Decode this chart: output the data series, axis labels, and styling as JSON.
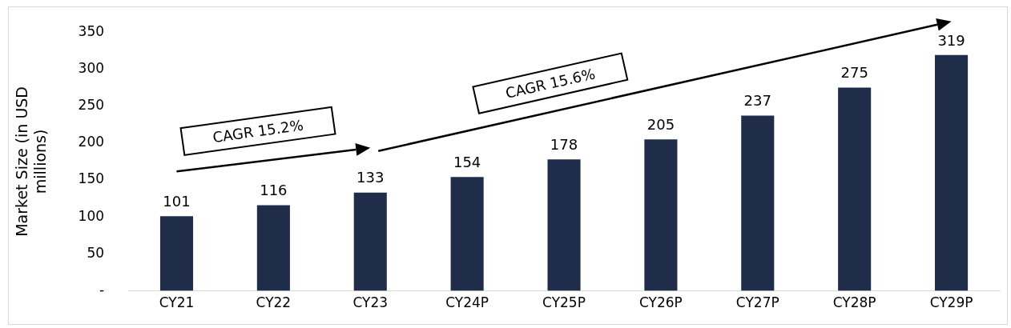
{
  "chart_data": {
    "type": "bar",
    "ylabel": "Market Size (in USD millions)",
    "categories": [
      "CY21",
      "CY22",
      "CY23",
      "CY24P",
      "CY25P",
      "CY26P",
      "CY27P",
      "CY28P",
      "CY29P"
    ],
    "values": [
      101,
      116,
      133,
      154,
      178,
      205,
      237,
      275,
      319
    ],
    "color": "#1f2d4a",
    "ylim": [
      0,
      350
    ],
    "yticks": [
      {
        "value": 0,
        "label": "-"
      },
      50,
      100,
      150,
      200,
      250,
      300,
      350
    ],
    "grid": false,
    "legend": false,
    "data_labels": true,
    "annotations": [
      "CAGR 15.2%",
      "CAGR 15.6%"
    ]
  }
}
